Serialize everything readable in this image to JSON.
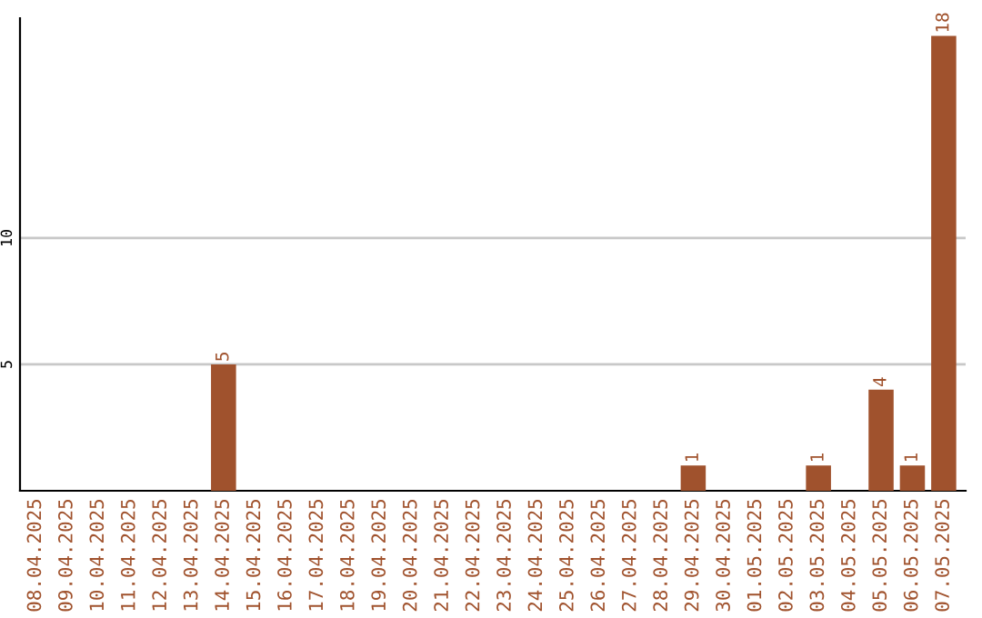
{
  "chart_data": {
    "type": "bar",
    "categories": [
      "08.04.2025",
      "09.04.2025",
      "10.04.2025",
      "11.04.2025",
      "12.04.2025",
      "13.04.2025",
      "14.04.2025",
      "15.04.2025",
      "16.04.2025",
      "17.04.2025",
      "18.04.2025",
      "19.04.2025",
      "20.04.2025",
      "21.04.2025",
      "22.04.2025",
      "23.04.2025",
      "24.04.2025",
      "25.04.2025",
      "26.04.2025",
      "27.04.2025",
      "28.04.2025",
      "29.04.2025",
      "30.04.2025",
      "01.05.2025",
      "02.05.2025",
      "03.05.2025",
      "04.05.2025",
      "05.05.2025",
      "06.05.2025",
      "07.05.2025"
    ],
    "values": [
      0,
      0,
      0,
      0,
      0,
      0,
      5,
      0,
      0,
      0,
      0,
      0,
      0,
      0,
      0,
      0,
      0,
      0,
      0,
      0,
      0,
      1,
      0,
      0,
      0,
      1,
      0,
      4,
      1,
      18
    ],
    "value_labels": [
      null,
      null,
      null,
      null,
      null,
      null,
      "5",
      null,
      null,
      null,
      null,
      null,
      null,
      null,
      null,
      null,
      null,
      null,
      null,
      null,
      null,
      "1",
      null,
      null,
      null,
      "1",
      null,
      "4",
      "1",
      "18"
    ],
    "color": "#a0522d",
    "ylim": [
      0,
      18.7
    ],
    "yticks": [
      5,
      10
    ],
    "grid": "y"
  }
}
